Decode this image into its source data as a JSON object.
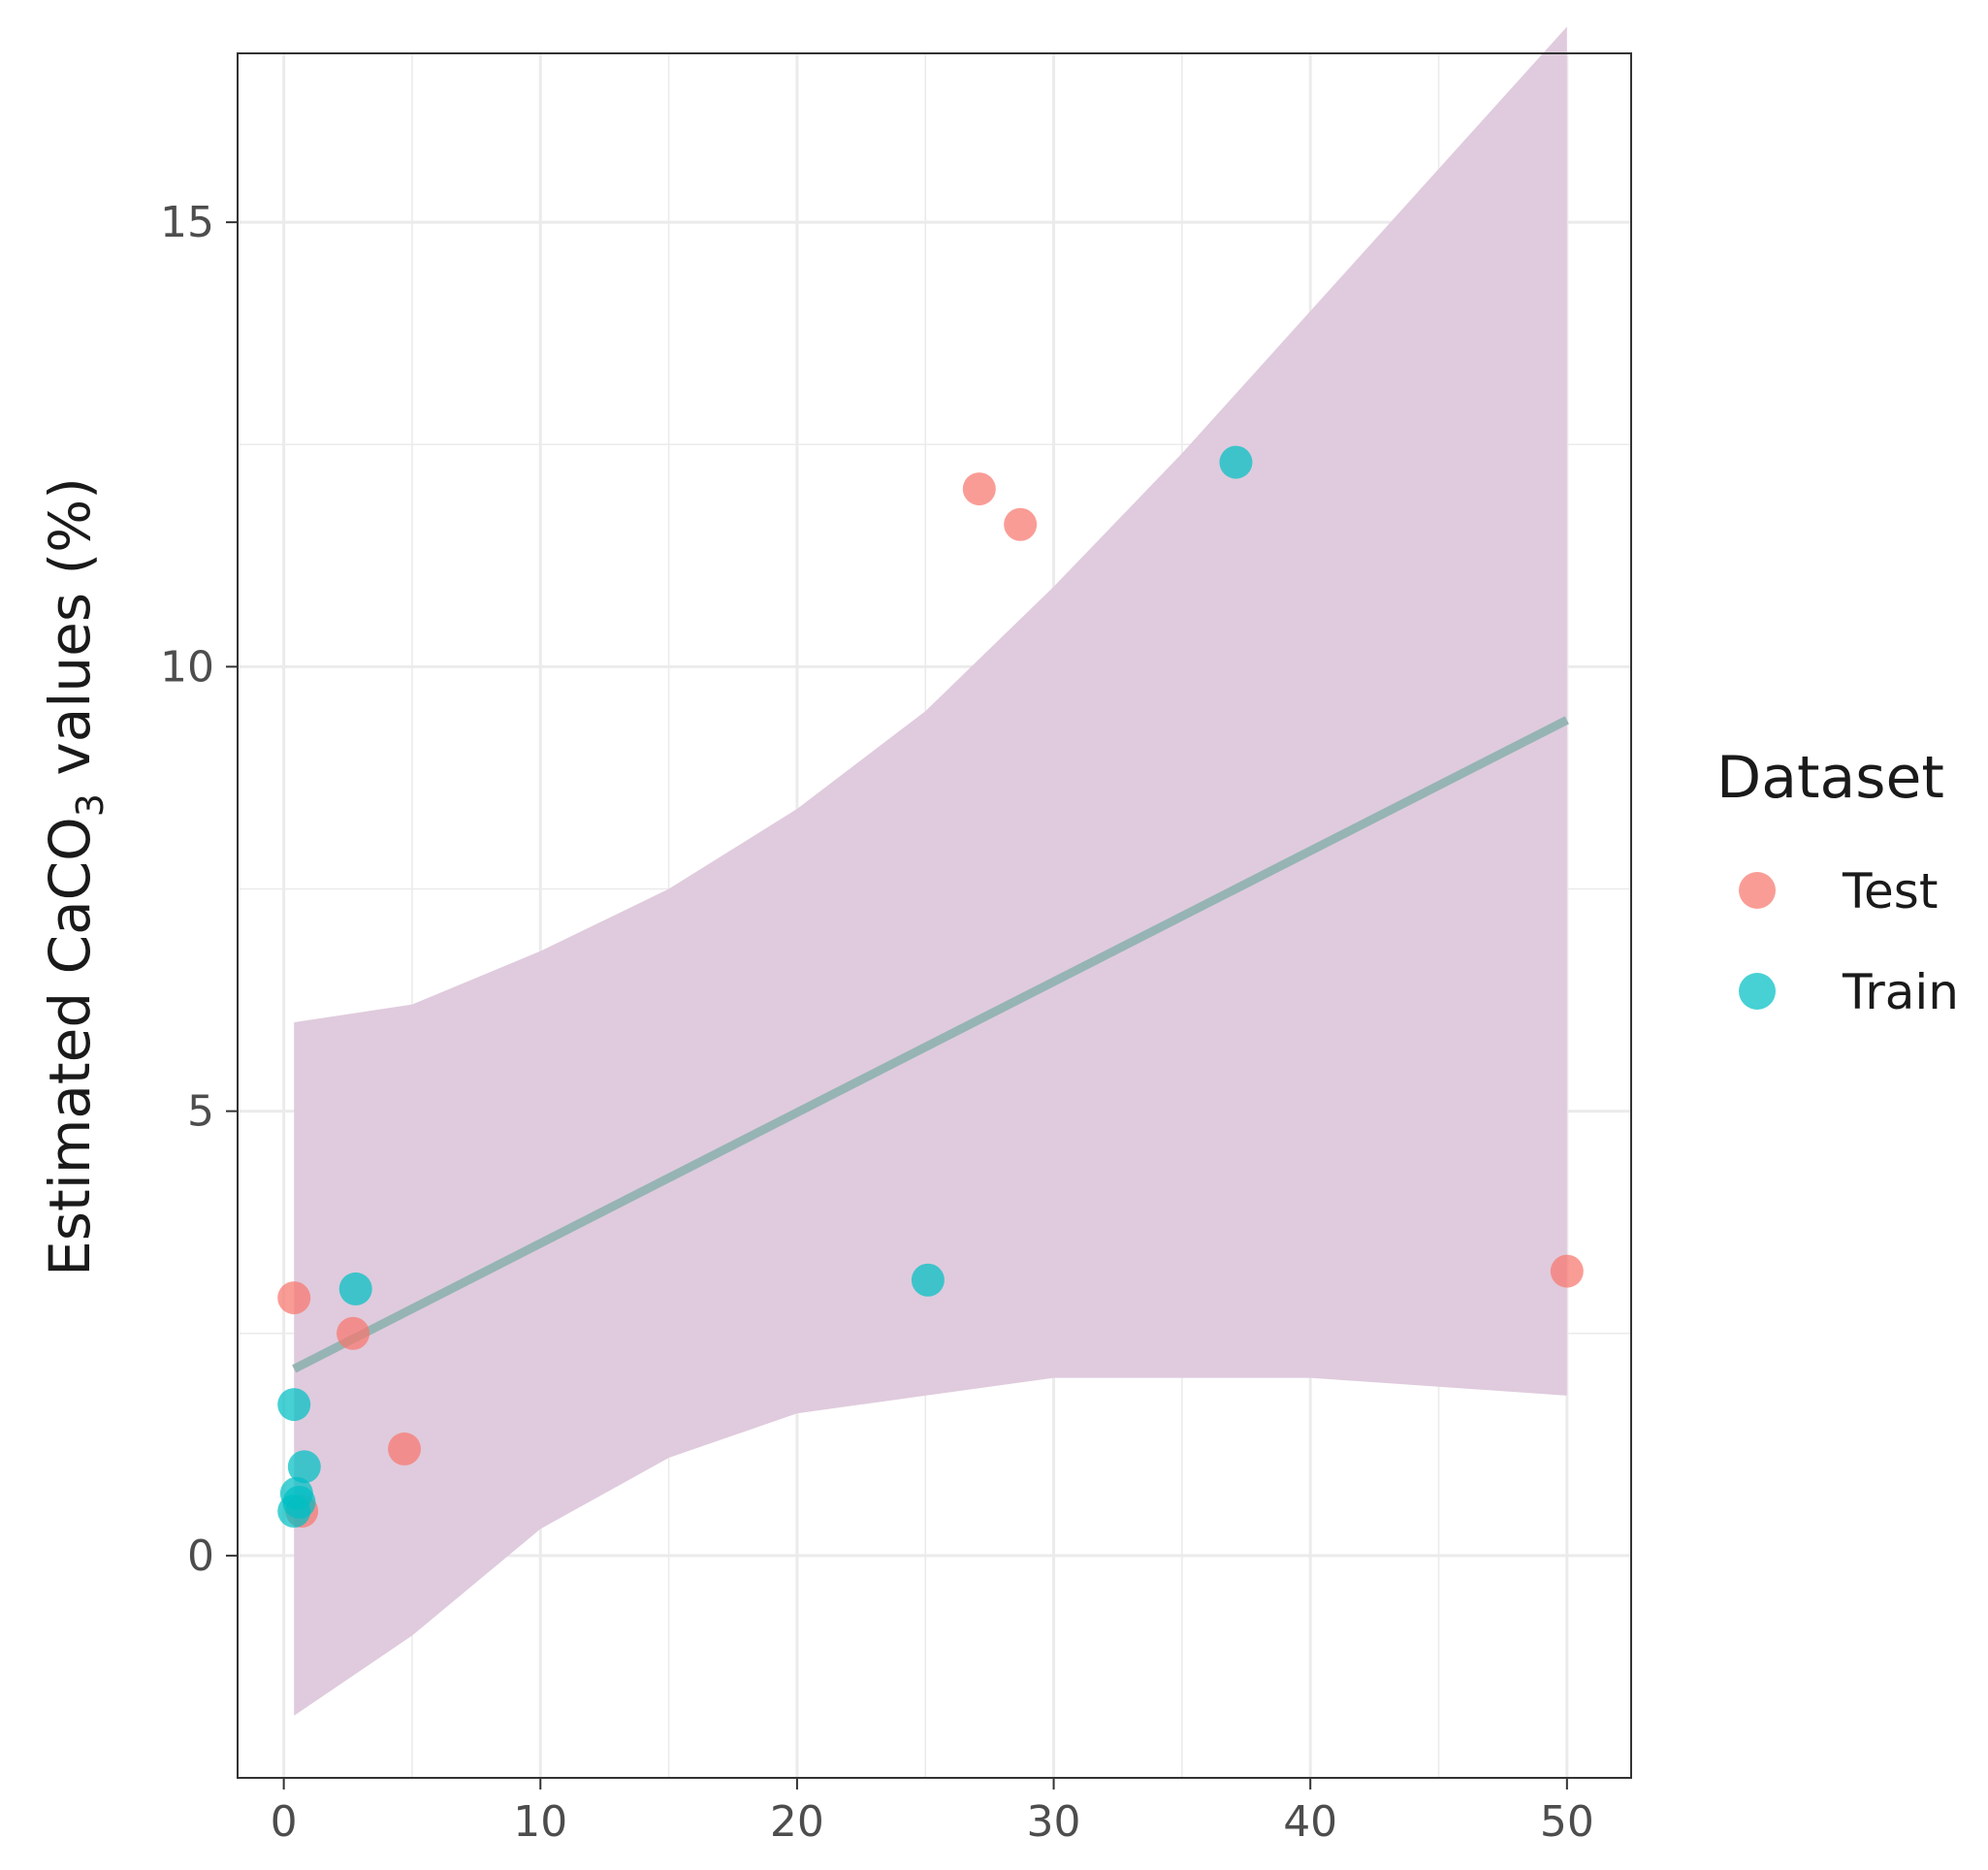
{
  "chart_data": {
    "type": "scatter",
    "title": "",
    "xlabel": "",
    "ylabel": {
      "prefix": "Estimated CaCO",
      "subscript": "3",
      "suffix": " values (%)"
    },
    "xlim": [
      -1.8,
      52.5
    ],
    "ylim": [
      -2.5,
      16.9
    ],
    "x_ticks": [
      0,
      10,
      20,
      30,
      40,
      50
    ],
    "x_tick_labels": [
      "0",
      "10",
      "20",
      "30",
      "40",
      "50"
    ],
    "y_ticks": [
      0,
      5,
      10,
      15
    ],
    "y_tick_labels": [
      "0",
      "5",
      "10",
      "15"
    ],
    "grid": true,
    "legend": {
      "title": "Dataset",
      "position": "right",
      "entries": [
        {
          "label": "Test",
          "color": "#F8766D"
        },
        {
          "label": "Train",
          "color": "#00BFC4"
        }
      ]
    },
    "series": [
      {
        "name": "Test",
        "color": "#F8766D",
        "points": [
          {
            "x": 0.4,
            "y": 2.9
          },
          {
            "x": 2.7,
            "y": 2.5
          },
          {
            "x": 4.7,
            "y": 1.2
          },
          {
            "x": 0.7,
            "y": 0.5
          },
          {
            "x": 27.1,
            "y": 12.0
          },
          {
            "x": 28.7,
            "y": 11.6
          },
          {
            "x": 50.0,
            "y": 3.2
          }
        ]
      },
      {
        "name": "Train",
        "color": "#00BFC4",
        "points": [
          {
            "x": 2.8,
            "y": 3.0
          },
          {
            "x": 0.4,
            "y": 1.7
          },
          {
            "x": 0.8,
            "y": 1.0
          },
          {
            "x": 0.5,
            "y": 0.7
          },
          {
            "x": 0.6,
            "y": 0.6
          },
          {
            "x": 0.4,
            "y": 0.5
          },
          {
            "x": 25.1,
            "y": 3.1
          },
          {
            "x": 37.1,
            "y": 12.3
          }
        ]
      }
    ],
    "regression_line": {
      "color": "#96B4B4",
      "x": [
        0.4,
        50.0
      ],
      "y": [
        2.1,
        9.4
      ]
    },
    "confidence_band": {
      "color": "#DFCBDD",
      "x": [
        0.4,
        5,
        10,
        15,
        20,
        25,
        30,
        35,
        40,
        45,
        50
      ],
      "upper": [
        6.0,
        6.2,
        6.8,
        7.5,
        8.4,
        9.5,
        10.9,
        12.4,
        14.0,
        15.6,
        17.2
      ],
      "lower": [
        -1.8,
        -0.9,
        0.3,
        1.1,
        1.6,
        1.8,
        2.0,
        2.0,
        2.0,
        1.9,
        1.8
      ]
    }
  }
}
